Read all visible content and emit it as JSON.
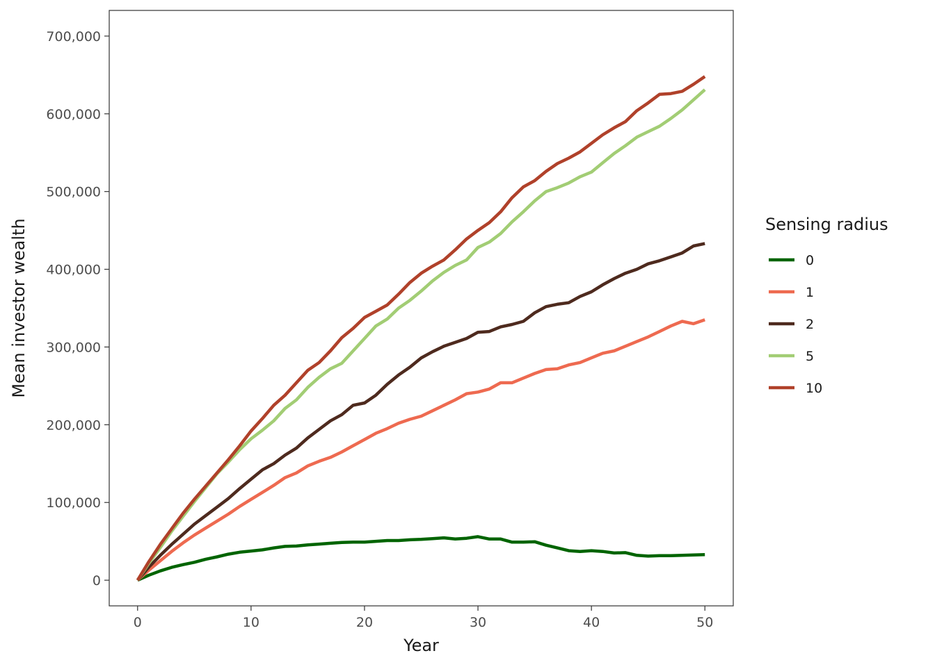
{
  "chart_data": {
    "type": "line",
    "title": "",
    "xlabel": "Year",
    "ylabel": "Mean investor wealth",
    "xlim": [
      -2.5,
      52.5
    ],
    "ylim": [
      -33000,
      733000
    ],
    "xticks": [
      0,
      10,
      20,
      30,
      40,
      50
    ],
    "xtick_labels": [
      "0",
      "10",
      "20",
      "30",
      "40",
      "50"
    ],
    "yticks": [
      0,
      100000,
      200000,
      300000,
      400000,
      500000,
      600000,
      700000
    ],
    "ytick_labels": [
      "0",
      "100,000",
      "200,000",
      "300,000",
      "400,000",
      "500,000",
      "600,000",
      "700,000"
    ],
    "grid": false,
    "legend": {
      "title": "Sensing radius",
      "position": "right"
    },
    "x": [
      0,
      1,
      2,
      3,
      4,
      5,
      6,
      7,
      8,
      9,
      10,
      11,
      12,
      13,
      14,
      15,
      16,
      17,
      18,
      19,
      20,
      21,
      22,
      23,
      24,
      25,
      26,
      27,
      28,
      29,
      30,
      31,
      32,
      33,
      34,
      35,
      36,
      37,
      38,
      39,
      40,
      41,
      42,
      43,
      44,
      45,
      46,
      47,
      48,
      49,
      50
    ],
    "series": [
      {
        "name": "0",
        "color": "#006400",
        "values": [
          0,
          6500,
          12000,
          16500,
          20000,
          23000,
          27000,
          30000,
          33500,
          36000,
          37500,
          39000,
          41500,
          43500,
          44000,
          45500,
          46500,
          47500,
          48500,
          49000,
          49000,
          50000,
          51000,
          51000,
          52000,
          52500,
          53500,
          54500,
          53000,
          54000,
          56000,
          53000,
          53000,
          49000,
          49000,
          49500,
          45000,
          41500,
          38000,
          37000,
          38000,
          37000,
          35000,
          35500,
          32000,
          31000,
          31500,
          31500,
          32000,
          32500,
          33000
        ]
      },
      {
        "name": "1",
        "color": "#EE6A50",
        "values": [
          0,
          13000,
          25000,
          37000,
          48000,
          58000,
          67000,
          76000,
          85000,
          95000,
          104000,
          113000,
          122000,
          132000,
          138000,
          147000,
          153000,
          158000,
          165000,
          173000,
          181000,
          189000,
          195000,
          202000,
          207000,
          211000,
          218000,
          225000,
          232000,
          240000,
          242000,
          246000,
          254000,
          254000,
          260000,
          266000,
          271000,
          272000,
          277000,
          280000,
          286000,
          292000,
          295000,
          301000,
          307000,
          313000,
          320000,
          327000,
          333000,
          330000,
          335000
        ]
      },
      {
        "name": "2",
        "color": "#4E2A1E",
        "values": [
          0,
          17000,
          32000,
          46000,
          59000,
          72000,
          83000,
          94000,
          105000,
          118000,
          130000,
          142000,
          150000,
          161000,
          170000,
          183000,
          194000,
          205000,
          213000,
          225000,
          228000,
          238000,
          252000,
          264000,
          274000,
          286000,
          294000,
          301000,
          306000,
          311000,
          319000,
          320000,
          326000,
          329000,
          333000,
          344000,
          352000,
          355000,
          357000,
          365000,
          371000,
          380000,
          388000,
          395000,
          400000,
          407000,
          411000,
          416000,
          421000,
          430000,
          433000
        ]
      },
      {
        "name": "5",
        "color": "#A2CD74",
        "values": [
          0,
          22000,
          42000,
          63000,
          82000,
          101000,
          119000,
          137000,
          152000,
          168000,
          182000,
          193000,
          205000,
          221000,
          232000,
          248000,
          261000,
          272000,
          279000,
          295000,
          311000,
          327000,
          336000,
          350000,
          360000,
          372000,
          385000,
          396000,
          405000,
          412000,
          428000,
          435000,
          446000,
          461000,
          474000,
          488000,
          500000,
          505000,
          511000,
          519000,
          525000,
          537000,
          549000,
          559000,
          570000,
          577000,
          584000,
          594000,
          605000,
          618000,
          631000
        ]
      },
      {
        "name": "10",
        "color": "#B0412A",
        "values": [
          0,
          24000,
          46000,
          66000,
          86000,
          104000,
          121000,
          138000,
          155000,
          173000,
          192000,
          208000,
          225000,
          238000,
          254000,
          270000,
          280000,
          295000,
          312000,
          324000,
          338000,
          346000,
          354000,
          368000,
          383000,
          395000,
          404000,
          412000,
          425000,
          439000,
          450000,
          460000,
          474000,
          492000,
          506000,
          514000,
          526000,
          536000,
          543000,
          551000,
          562000,
          573000,
          582000,
          590000,
          604000,
          614000,
          625000,
          626000,
          629000,
          638000,
          648000
        ]
      }
    ]
  }
}
